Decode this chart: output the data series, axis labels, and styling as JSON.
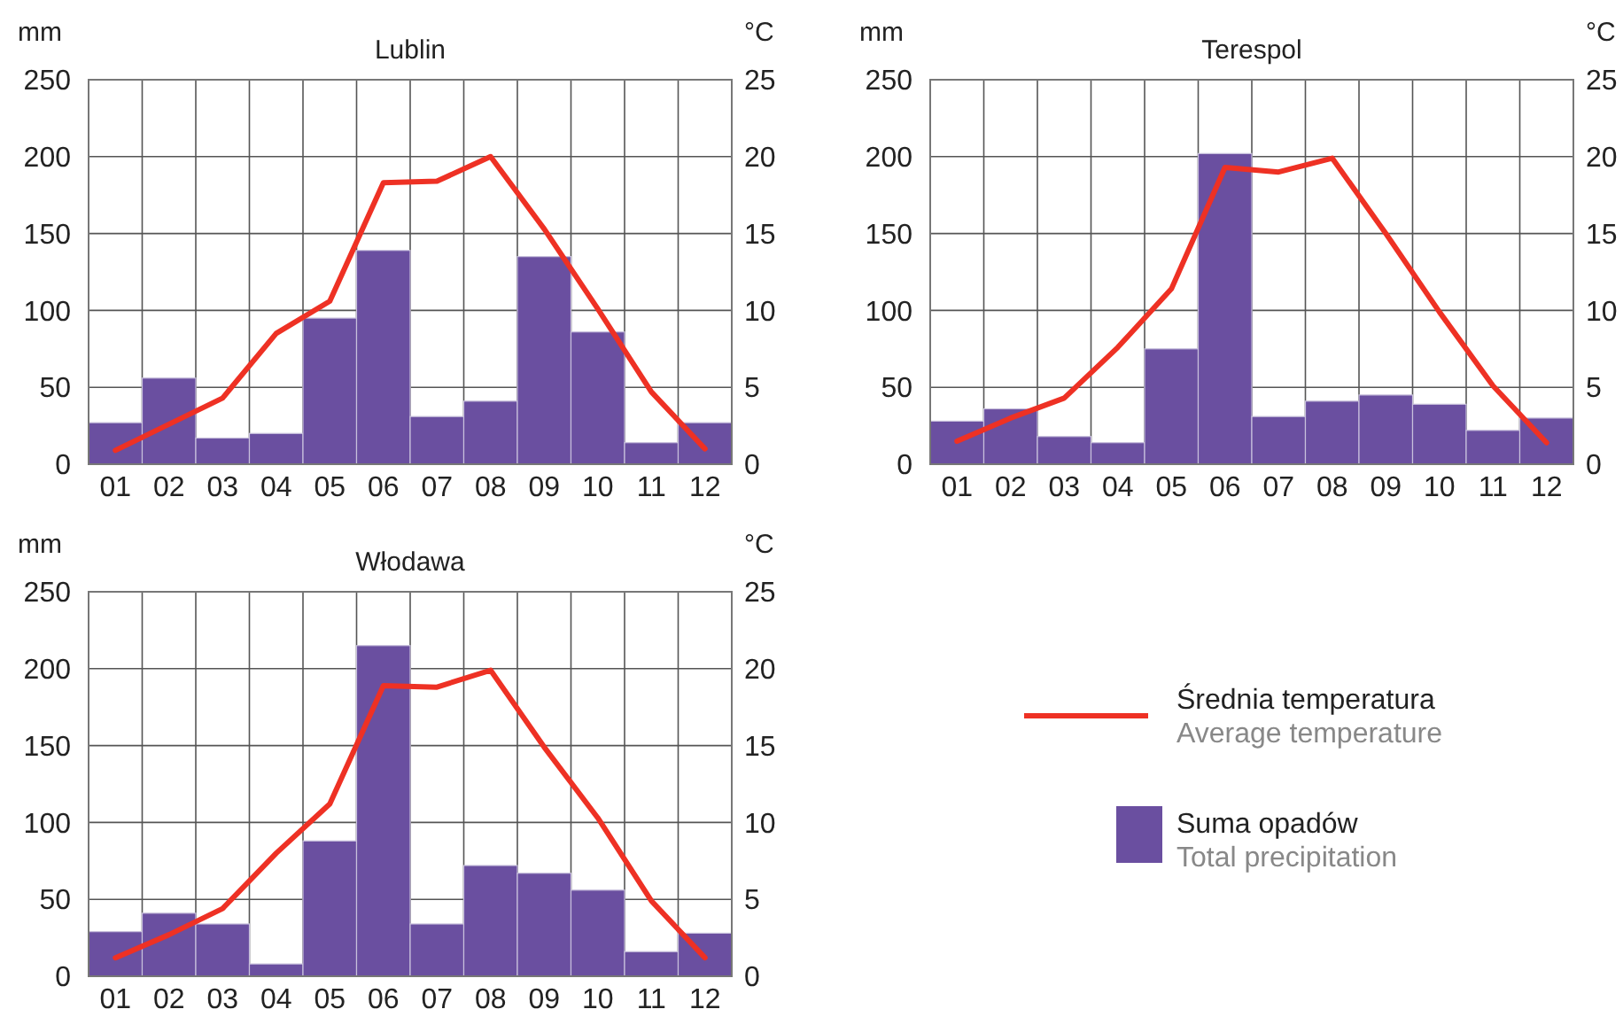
{
  "chart_data": [
    {
      "type": "bar",
      "title": "Lublin",
      "ylabel": "mm",
      "y2label": "°C",
      "categories": [
        "01",
        "02",
        "03",
        "04",
        "05",
        "06",
        "07",
        "08",
        "09",
        "10",
        "11",
        "12"
      ],
      "ylim": [
        0,
        250
      ],
      "yticks": [
        0,
        50,
        100,
        150,
        200,
        250
      ],
      "y2lim": [
        0,
        25
      ],
      "y2ticks": [
        0,
        5,
        10,
        15,
        20,
        25
      ],
      "grid": true,
      "series": [
        {
          "color": "#6a4fa0",
          "values": [
            27,
            56,
            17,
            20,
            95,
            139,
            31,
            41,
            135,
            86,
            14,
            27
          ]
        },
        {
          "type": "line",
          "axis": "y2",
          "color": "#ee3124",
          "values": [
            0.9,
            2.6,
            4.3,
            8.5,
            10.6,
            18.3,
            18.4,
            20.0,
            15.3,
            10.1,
            4.7,
            1.0
          ]
        }
      ]
    },
    {
      "type": "bar",
      "title": "Terespol",
      "ylabel": "mm",
      "y2label": "°C",
      "categories": [
        "01",
        "02",
        "03",
        "04",
        "05",
        "06",
        "07",
        "08",
        "09",
        "10",
        "11",
        "12"
      ],
      "ylim": [
        0,
        250
      ],
      "yticks": [
        0,
        50,
        100,
        150,
        200,
        250
      ],
      "y2lim": [
        0,
        25
      ],
      "y2ticks": [
        0,
        5,
        10,
        15,
        20,
        25
      ],
      "grid": true,
      "series": [
        {
          "color": "#6a4fa0",
          "values": [
            28,
            36,
            18,
            14,
            75,
            202,
            31,
            41,
            45,
            39,
            22,
            30
          ]
        },
        {
          "type": "line",
          "axis": "y2",
          "color": "#ee3124",
          "values": [
            1.5,
            3.0,
            4.3,
            7.6,
            11.4,
            19.3,
            19.0,
            19.9,
            15.0,
            9.9,
            5.1,
            1.4
          ]
        }
      ]
    },
    {
      "type": "bar",
      "title": "Włodawa",
      "ylabel": "mm",
      "y2label": "°C",
      "categories": [
        "01",
        "02",
        "03",
        "04",
        "05",
        "06",
        "07",
        "08",
        "09",
        "10",
        "11",
        "12"
      ],
      "ylim": [
        0,
        250
      ],
      "yticks": [
        0,
        50,
        100,
        150,
        200,
        250
      ],
      "y2lim": [
        0,
        25
      ],
      "y2ticks": [
        0,
        5,
        10,
        15,
        20,
        25
      ],
      "grid": true,
      "legend": "right",
      "series": [
        {
          "name": "Suma opadów\nTotal precipitation",
          "color": "#6a4fa0",
          "values": [
            29,
            41,
            34,
            8,
            88,
            215,
            34,
            72,
            67,
            56,
            16,
            28
          ]
        },
        {
          "type": "line",
          "axis": "y2",
          "name": "Średnia temperatura\nAverage temperature",
          "color": "#ee3124",
          "values": [
            1.2,
            2.7,
            4.4,
            8.0,
            11.2,
            18.9,
            18.8,
            19.9,
            14.9,
            10.3,
            4.9,
            1.2
          ]
        }
      ]
    }
  ]
}
